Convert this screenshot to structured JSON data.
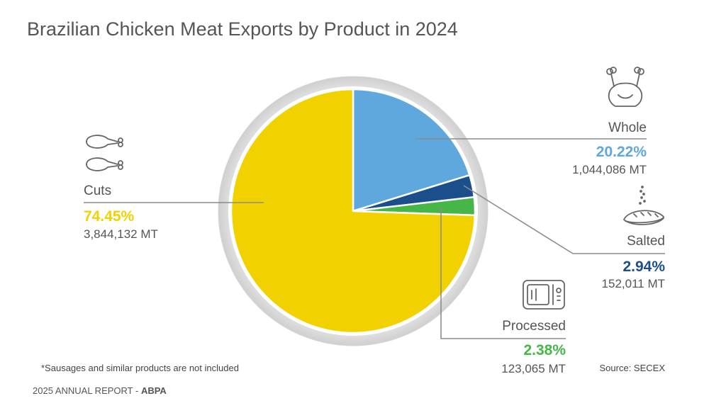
{
  "title": "Brazilian Chicken Meat Exports by Product in 2024",
  "footnote": "*Sausages and similar products are not included",
  "source": "Source: SECEX",
  "footer": {
    "report": "2025 ANNUAL REPORT - ",
    "org": "ABPA"
  },
  "icons": {
    "whole": "whole-chicken-icon",
    "cuts": "chicken-drumstick-icon",
    "salted": "salted-breast-icon",
    "processed": "microwave-icon"
  },
  "chart_data": {
    "type": "pie",
    "title": "Brazilian Chicken Meat Exports by Product in 2024",
    "categories": [
      "Whole",
      "Salted",
      "Processed",
      "Cuts"
    ],
    "values": [
      20.22,
      2.94,
      2.38,
      74.45
    ],
    "percent_labels": [
      "20.22%",
      "2.94%",
      "2.38%",
      "74.45%"
    ],
    "volume_labels": [
      "1,044,086 MT",
      "152,011 MT",
      "123,065 MT",
      "3,844,132 MT"
    ],
    "colors": [
      "#5ea8dd",
      "#1b4f8c",
      "#46b649",
      "#f2d100"
    ],
    "start_angle": "12 o'clock, clockwise",
    "legend": "none"
  }
}
